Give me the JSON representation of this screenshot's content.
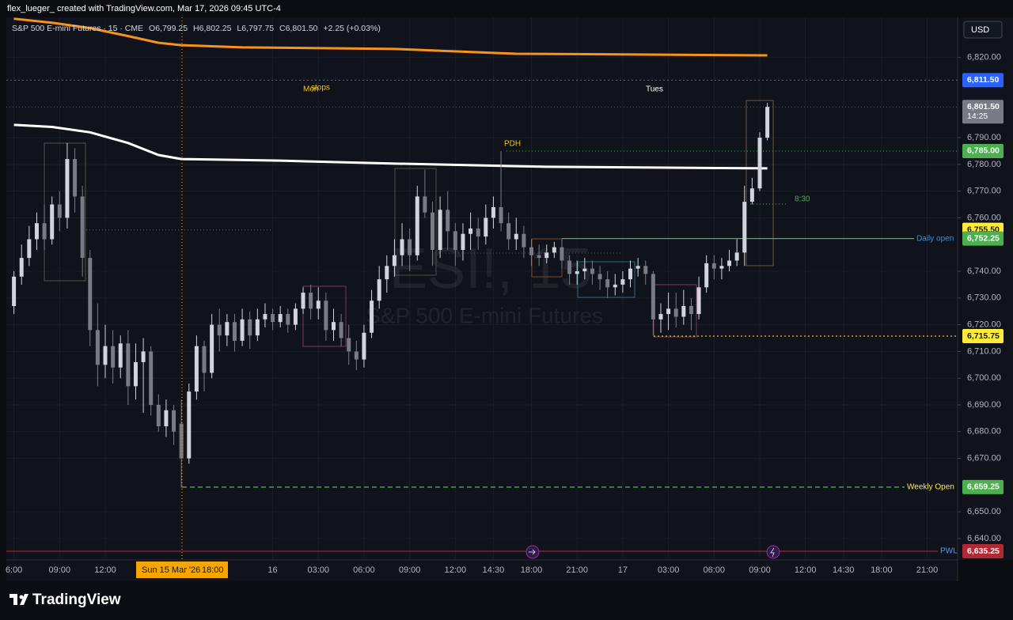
{
  "header": {
    "credit": "flex_lueger_ created with TradingView.com, Mar 17, 2026 09:45 UTC-4",
    "symbol": "S&P 500 E-mini Futures · 15 · CME",
    "ohlc": [
      "O6,799.25",
      "H6,802.25",
      "L6,797.75",
      "C6,801.50"
    ],
    "change": "+2.25 (+0.03%)"
  },
  "currency": "USD",
  "watermark": {
    "ticker": "ESI!, 15",
    "name": "S&P 500 E-mini Futures"
  },
  "annotations": [
    "Mon",
    "stops",
    "Tues",
    "8:30"
  ],
  "crosshair": {
    "date": "Sun 15 Mar '26",
    "time": "18:00"
  },
  "footer": "TradingView",
  "chart_data": {
    "type": "candlestick",
    "up_color": "#d1d4dc",
    "down_color": "#787b86",
    "xlim": [
      -1,
      124
    ],
    "ylim": [
      6632,
      6835
    ],
    "grid": true,
    "candles": {
      "open": [
        6727,
        6738,
        6745,
        6752,
        6758,
        6752,
        6765,
        6760,
        6782,
        6768,
        6745,
        6718,
        6705,
        6712,
        6704,
        6713,
        6697,
        6706,
        6710,
        6690,
        6682,
        6688,
        6683,
        6670,
        6695,
        6712,
        6702,
        6720,
        6716,
        6721,
        6714,
        6722,
        6716,
        6722,
        6724,
        6721,
        6724,
        6720,
        6726,
        6732,
        6726,
        6729,
        6718,
        6721,
        6715,
        6710,
        6707,
        6717,
        6729,
        6737,
        6742,
        6746,
        6752,
        6746,
        6768,
        6762,
        6748,
        6763,
        6755,
        6748,
        6754,
        6756,
        6753,
        6760,
        6764,
        6758,
        6752,
        6754,
        6749,
        6746,
        6745,
        6747,
        6749,
        6744,
        6739,
        6740,
        6741,
        6739,
        6737,
        6734,
        6735,
        6737,
        6741,
        6742,
        6739,
        6722,
        6724,
        6726,
        6723,
        6727,
        6724,
        6734,
        6743,
        6741,
        6742,
        6744,
        6747,
        6766,
        6771,
        6790
      ],
      "high": [
        6740,
        6750,
        6757,
        6762,
        6765,
        6768,
        6770,
        6788,
        6786,
        6772,
        6748,
        6728,
        6720,
        6718,
        6716,
        6718,
        6713,
        6715,
        6712,
        6694,
        6692,
        6690,
        6692,
        6698,
        6716,
        6714,
        6724,
        6726,
        6724,
        6724,
        6726,
        6725,
        6726,
        6728,
        6726,
        6727,
        6726,
        6728,
        6734,
        6735,
        6734,
        6732,
        6726,
        6724,
        6720,
        6714,
        6720,
        6733,
        6742,
        6746,
        6752,
        6758,
        6756,
        6772,
        6778,
        6766,
        6768,
        6770,
        6758,
        6758,
        6762,
        6760,
        6765,
        6768,
        6785,
        6762,
        6760,
        6757,
        6752,
        6750,
        6750,
        6751,
        6752,
        6746,
        6744,
        6745,
        6744,
        6742,
        6740,
        6739,
        6740,
        6744,
        6745,
        6744,
        6740,
        6728,
        6732,
        6732,
        6733,
        6730,
        6738,
        6746,
        6746,
        6745,
        6748,
        6752,
        6772,
        6775,
        6792,
        6803
      ],
      "low": [
        6724,
        6735,
        6742,
        6748,
        6748,
        6750,
        6755,
        6756,
        6762,
        6738,
        6712,
        6697,
        6700,
        6698,
        6700,
        6690,
        6692,
        6687,
        6686,
        6680,
        6678,
        6675,
        6659,
        6668,
        6692,
        6695,
        6700,
        6710,
        6712,
        6710,
        6712,
        6711,
        6714,
        6719,
        6718,
        6719,
        6717,
        6718,
        6724,
        6722,
        6722,
        6714,
        6714,
        6712,
        6705,
        6703,
        6704,
        6715,
        6726,
        6732,
        6738,
        6742,
        6740,
        6744,
        6760,
        6742,
        6745,
        6748,
        6742,
        6744,
        6748,
        6748,
        6750,
        6756,
        6755,
        6748,
        6748,
        6745,
        6742,
        6742,
        6743,
        6745,
        6741,
        6735,
        6735,
        6737,
        6735,
        6733,
        6730,
        6731,
        6732,
        6734,
        6738,
        6735,
        6716,
        6717,
        6718,
        6719,
        6720,
        6718,
        6722,
        6732,
        6737,
        6737,
        6740,
        6742,
        6742,
        6765,
        6770,
        6789
      ],
      "close": [
        6738,
        6745,
        6752,
        6758,
        6752,
        6765,
        6760,
        6782,
        6768,
        6745,
        6718,
        6705,
        6712,
        6704,
        6713,
        6697,
        6706,
        6710,
        6690,
        6682,
        6688,
        6680,
        6670,
        6695,
        6712,
        6702,
        6720,
        6716,
        6721,
        6714,
        6722,
        6716,
        6722,
        6724,
        6721,
        6724,
        6720,
        6726,
        6732,
        6726,
        6729,
        6718,
        6721,
        6715,
        6710,
        6707,
        6717,
        6729,
        6737,
        6742,
        6746,
        6752,
        6746,
        6768,
        6762,
        6748,
        6763,
        6755,
        6748,
        6754,
        6756,
        6753,
        6760,
        6764,
        6758,
        6752,
        6754,
        6749,
        6746,
        6745,
        6747,
        6749,
        6744,
        6739,
        6740,
        6741,
        6739,
        6737,
        6734,
        6735,
        6737,
        6741,
        6742,
        6739,
        6722,
        6724,
        6726,
        6723,
        6727,
        6724,
        6734,
        6743,
        6741,
        6742,
        6744,
        6747,
        6766,
        6771,
        6790,
        6801.5
      ]
    },
    "series": [
      {
        "color": "#f7931a",
        "x": [
          0,
          5,
          10,
          15,
          19,
          22,
          30,
          50,
          66,
          99
        ],
        "values": [
          6834.5,
          6833,
          6831,
          6828,
          6825.5,
          6824.6,
          6823.8,
          6823.2,
          6821.4,
          6820.8
        ]
      },
      {
        "color": "#ffffff",
        "x": [
          0,
          5,
          10,
          15,
          19,
          22,
          35,
          50,
          70,
          99
        ],
        "values": [
          6794.8,
          6794,
          6792,
          6788,
          6783.5,
          6782,
          6781.4,
          6780.3,
          6779.1,
          6778.5
        ]
      }
    ],
    "levels": [
      {
        "value": 6811.5,
        "label": "6,811.50",
        "color": "#2962ff",
        "text_color": "#ffffff",
        "line_color": "#2962ff"
      },
      {
        "value": 6801.5,
        "label": "6,801.50",
        "color": "#787b86",
        "text_color": "#ffffff",
        "line_color": "#5d606b",
        "countdown": "14:25"
      },
      {
        "value": 6785,
        "label": "6,785.00",
        "color": "#4caf50",
        "text_color": "#ffffff",
        "line_color": "#4caf50",
        "name": "PDH",
        "name_color": "#f0c020"
      },
      {
        "value": 6755.5,
        "label": "6,755.50",
        "color": "#ffeb3b",
        "text_color": "#131722",
        "line_color": "#4f6b4f"
      },
      {
        "value": 6752.25,
        "label": "6,752.25",
        "color": "#4caf50",
        "text_color": "#ffffff",
        "line_color": "#4caf50",
        "name": "Daily open",
        "name_color": "#2196f3"
      },
      {
        "value": 6715.75,
        "label": "6,715.75",
        "color": "#ffeb3b",
        "text_color": "#131722",
        "line_color": "#ffeb3b"
      },
      {
        "value": 6659.25,
        "label": "6,659.25",
        "color": "#4caf50",
        "text_color": "#ffffff",
        "line_color": "#4caf50",
        "name": "Weekly Open",
        "name_color": "#ffeb3b"
      },
      {
        "value": 6635.25,
        "label": "6,635.25",
        "color": "#b22833",
        "text_color": "#ffffff",
        "line_color": "#b22833",
        "name": "PWL",
        "name_color": "#5b9cf6"
      }
    ],
    "yticks": [
      {
        "value": 6820,
        "label": "6,820.00"
      },
      {
        "value": 6790,
        "label": "6,790.00"
      },
      {
        "value": 6780,
        "label": "6,780.00"
      },
      {
        "value": 6770,
        "label": "6,770.00"
      },
      {
        "value": 6760,
        "label": "6,760.00"
      },
      {
        "value": 6740,
        "label": "6,740.00"
      },
      {
        "value": 6730,
        "label": "6,730.00"
      },
      {
        "value": 6720,
        "label": "6,720.00"
      },
      {
        "value": 6710,
        "label": "6,710.00"
      },
      {
        "value": 6700,
        "label": "6,700.00"
      },
      {
        "value": 6690,
        "label": "6,690.00"
      },
      {
        "value": 6680,
        "label": "6,680.00"
      },
      {
        "value": 6670,
        "label": "6,670.00"
      },
      {
        "value": 6650,
        "label": "6,650.00"
      },
      {
        "value": 6640,
        "label": "6,640.00"
      }
    ],
    "xticks": [
      {
        "value": 0,
        "label": "6:00"
      },
      {
        "value": 6,
        "label": "09:00"
      },
      {
        "value": 12,
        "label": "12:00"
      },
      {
        "value": 34,
        "label": "16"
      },
      {
        "value": 40,
        "label": "03:00"
      },
      {
        "value": 46,
        "label": "06:00"
      },
      {
        "value": 52,
        "label": "09:00"
      },
      {
        "value": 58,
        "label": "12:00"
      },
      {
        "value": 63,
        "label": "14:30"
      },
      {
        "value": 68,
        "label": "18:00"
      },
      {
        "value": 74,
        "label": "21:00"
      },
      {
        "value": 80,
        "label": "17"
      },
      {
        "value": 86,
        "label": "03:00"
      },
      {
        "value": 92,
        "label": "06:00"
      },
      {
        "value": 98,
        "label": "09:00"
      },
      {
        "value": 104,
        "label": "12:00"
      },
      {
        "value": 109,
        "label": "14:30"
      },
      {
        "value": 114,
        "label": "18:00"
      },
      {
        "value": 120,
        "label": "21:00"
      }
    ]
  }
}
